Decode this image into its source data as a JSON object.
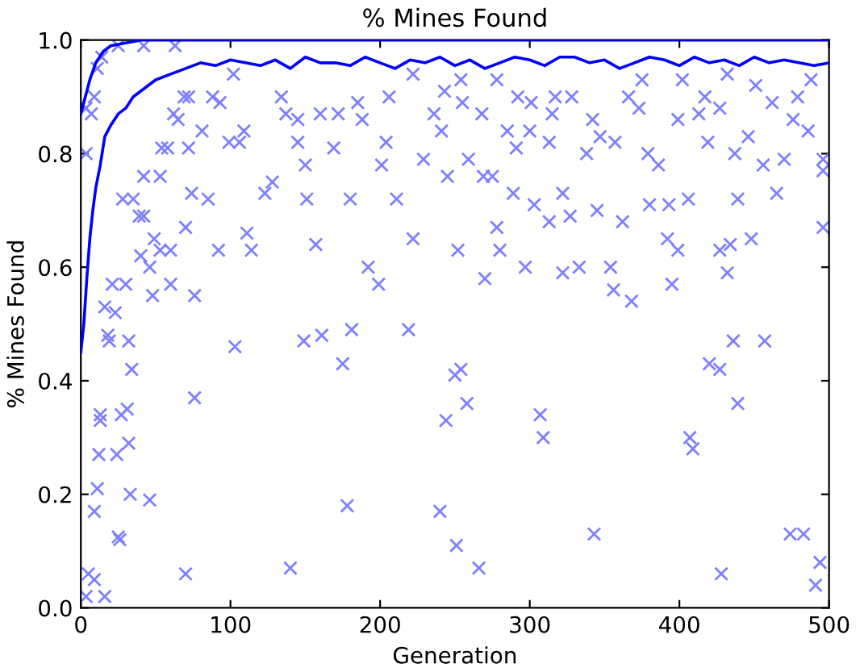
{
  "chart_data": {
    "type": "scatter",
    "title": "% Mines Found",
    "xlabel": "Generation",
    "ylabel": "% Mines Found",
    "xlim": [
      0,
      500
    ],
    "ylim": [
      0.0,
      1.0
    ],
    "xticks": [
      0,
      100,
      200,
      300,
      400,
      500
    ],
    "yticks": [
      {
        "value": 0,
        "label": "0.0"
      },
      0.2,
      0.4,
      0.6,
      0.8,
      {
        "value": 1,
        "label": "1.0"
      }
    ],
    "grid": false,
    "legend": false,
    "series": [
      {
        "marker": "cross",
        "color": "#7f7fff",
        "x": [
          3.5,
          5,
          9,
          16,
          9,
          11,
          12,
          13,
          13,
          24,
          25,
          26,
          27,
          31,
          32,
          33,
          34,
          46,
          32,
          19,
          18,
          70,
          76,
          103,
          140,
          149,
          161,
          175,
          178,
          181,
          219,
          240,
          244,
          250,
          251,
          254,
          258,
          266,
          307,
          309,
          343,
          407,
          409,
          420,
          427,
          428,
          436,
          439,
          457,
          474,
          483,
          491,
          494,
          3.5,
          7,
          3.5,
          9,
          11,
          14,
          25,
          42,
          63,
          21,
          30,
          16,
          23,
          28,
          35,
          39,
          42,
          40,
          46,
          49,
          53,
          60,
          42,
          53,
          54,
          58,
          62,
          69,
          72,
          65,
          60,
          48,
          76,
          72,
          74,
          70,
          81,
          85,
          88,
          93,
          92,
          99,
          106,
          102,
          109,
          111,
          114,
          123,
          128,
          134,
          137,
          145,
          145,
          150,
          151,
          160,
          157,
          169,
          172,
          180,
          185,
          188,
          192,
          199,
          201,
          204,
          206,
          211,
          222,
          222,
          229,
          236,
          241,
          243,
          245,
          252,
          255,
          254,
          278,
          268,
          292,
          301,
          317,
          328,
          315,
          285,
          300,
          291,
          313,
          275,
          269,
          259,
          289,
          303,
          322,
          338,
          342,
          347,
          357,
          366,
          375,
          373,
          379,
          386,
          380,
          393,
          399,
          402,
          406,
          413,
          419,
          417,
          427,
          432,
          437,
          439,
          446,
          451,
          456,
          462,
          465,
          470,
          476,
          479,
          486,
          488,
          496,
          496,
          496,
          278,
          280,
          297,
          313,
          327,
          345,
          362,
          392,
          399,
          427,
          434,
          448,
          322,
          333,
          354,
          356,
          368,
          395,
          432,
          270
        ],
        "values": [
          0.02,
          0.06,
          0.05,
          0.02,
          0.17,
          0.21,
          0.27,
          0.33,
          0.34,
          0.27,
          0.125,
          0.12,
          0.34,
          0.35,
          0.29,
          0.2,
          0.42,
          0.19,
          0.47,
          0.47,
          0.48,
          0.06,
          0.37,
          0.46,
          0.07,
          0.47,
          0.48,
          0.43,
          0.18,
          0.49,
          0.49,
          0.17,
          0.33,
          0.41,
          0.11,
          0.42,
          0.36,
          0.07,
          0.34,
          0.3,
          0.13,
          0.3,
          0.28,
          0.43,
          0.42,
          0.06,
          0.47,
          0.36,
          0.47,
          0.13,
          0.13,
          0.04,
          0.08,
          0.88,
          0.87,
          0.8,
          0.9,
          0.95,
          0.97,
          0.99,
          0.99,
          0.99,
          0.57,
          0.57,
          0.53,
          0.52,
          0.72,
          0.72,
          0.69,
          0.69,
          0.62,
          0.6,
          0.65,
          0.63,
          0.63,
          0.76,
          0.76,
          0.81,
          0.81,
          0.87,
          0.9,
          0.9,
          0.86,
          0.57,
          0.55,
          0.55,
          0.81,
          0.73,
          0.67,
          0.84,
          0.72,
          0.9,
          0.89,
          0.63,
          0.82,
          0.82,
          0.94,
          0.84,
          0.66,
          0.63,
          0.73,
          0.75,
          0.9,
          0.87,
          0.82,
          0.86,
          0.78,
          0.72,
          0.87,
          0.64,
          0.81,
          0.87,
          0.72,
          0.89,
          0.86,
          0.6,
          0.57,
          0.78,
          0.82,
          0.9,
          0.72,
          0.94,
          0.65,
          0.79,
          0.87,
          0.84,
          0.91,
          0.76,
          0.63,
          0.89,
          0.93,
          0.93,
          0.87,
          0.9,
          0.89,
          0.9,
          0.9,
          0.87,
          0.84,
          0.84,
          0.81,
          0.82,
          0.76,
          0.76,
          0.79,
          0.73,
          0.71,
          0.73,
          0.8,
          0.86,
          0.83,
          0.82,
          0.9,
          0.93,
          0.88,
          0.8,
          0.78,
          0.71,
          0.71,
          0.86,
          0.93,
          0.72,
          0.87,
          0.82,
          0.9,
          0.88,
          0.94,
          0.8,
          0.72,
          0.83,
          0.92,
          0.78,
          0.89,
          0.73,
          0.79,
          0.86,
          0.9,
          0.84,
          0.93,
          0.79,
          0.77,
          0.67,
          0.67,
          0.63,
          0.6,
          0.68,
          0.69,
          0.7,
          0.68,
          0.65,
          0.63,
          0.63,
          0.64,
          0.65,
          0.59,
          0.6,
          0.6,
          0.56,
          0.54,
          0.57,
          0.59,
          0.58
        ]
      },
      {
        "type": "line",
        "marker": "none",
        "color": "#0000ff",
        "x": [
          0,
          2,
          4,
          6,
          8,
          10,
          13,
          16,
          20,
          25,
          30,
          35,
          40,
          50,
          60,
          70,
          80,
          90,
          100,
          110,
          120,
          130,
          140,
          150,
          160,
          170,
          180,
          190,
          200,
          210,
          220,
          230,
          240,
          250,
          260,
          270,
          280,
          290,
          300,
          310,
          320,
          330,
          340,
          350,
          360,
          370,
          380,
          390,
          400,
          410,
          420,
          430,
          440,
          450,
          460,
          470,
          480,
          490,
          500
        ],
        "values": [
          0.45,
          0.5,
          0.58,
          0.65,
          0.7,
          0.74,
          0.78,
          0.83,
          0.85,
          0.87,
          0.88,
          0.9,
          0.91,
          0.93,
          0.94,
          0.95,
          0.96,
          0.955,
          0.965,
          0.96,
          0.955,
          0.965,
          0.95,
          0.97,
          0.96,
          0.96,
          0.955,
          0.97,
          0.96,
          0.95,
          0.965,
          0.96,
          0.97,
          0.955,
          0.965,
          0.95,
          0.96,
          0.97,
          0.965,
          0.955,
          0.97,
          0.97,
          0.96,
          0.965,
          0.95,
          0.96,
          0.97,
          0.965,
          0.955,
          0.97,
          0.96,
          0.965,
          0.955,
          0.97,
          0.96,
          0.965,
          0.96,
          0.955,
          0.96
        ]
      },
      {
        "type": "line",
        "marker": "none",
        "color": "#0000ff",
        "x": [
          0,
          3,
          6,
          10,
          15,
          20,
          30,
          40,
          60,
          100,
          200,
          300,
          400,
          500
        ],
        "values": [
          0.87,
          0.9,
          0.93,
          0.96,
          0.98,
          0.99,
          0.995,
          1.0,
          1.0,
          1.0,
          1.0,
          1.0,
          1.0,
          1.0
        ]
      }
    ]
  }
}
